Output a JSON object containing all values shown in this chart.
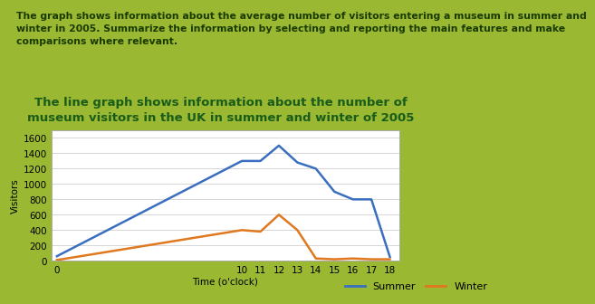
{
  "title": "The line graph shows information about the number of\nmuseum visitors in the UK in summer and winter of 2005",
  "header_text": "The graph shows information about the average number of visitors entering a museum in summer and\nwinter in 2005. Summarize the information by selecting and reporting the main features and make\ncomparisons where relevant.",
  "x_labels": [
    "0",
    "10",
    "11",
    "12",
    "13",
    "14",
    "15",
    "16",
    "17",
    "18"
  ],
  "x_values": [
    0,
    10,
    11,
    12,
    13,
    14,
    15,
    16,
    17,
    18
  ],
  "summer_values": [
    60,
    1300,
    1300,
    1500,
    1280,
    1200,
    900,
    800,
    800,
    50
  ],
  "winter_values": [
    10,
    400,
    380,
    600,
    400,
    30,
    20,
    30,
    20,
    20
  ],
  "summer_color": "#3a6ebf",
  "winter_color": "#e07820",
  "ylabel": "Visitors",
  "xlabel": "Time (o'clock)",
  "ylim": [
    0,
    1700
  ],
  "yticks": [
    0,
    200,
    400,
    600,
    800,
    1000,
    1200,
    1400,
    1600
  ],
  "title_color": "#1a5c1a",
  "header_bg": "#e3e3e3",
  "outer_bg": "#9ab832",
  "plot_bg": "#ffffff",
  "title_fontsize": 9.5,
  "header_fontsize": 7.8,
  "legend_summer": "Summer",
  "legend_winter": "Winter",
  "header_border_color": "#5a8a20",
  "axis_label_fontsize": 7.5,
  "tick_fontsize": 7.5
}
